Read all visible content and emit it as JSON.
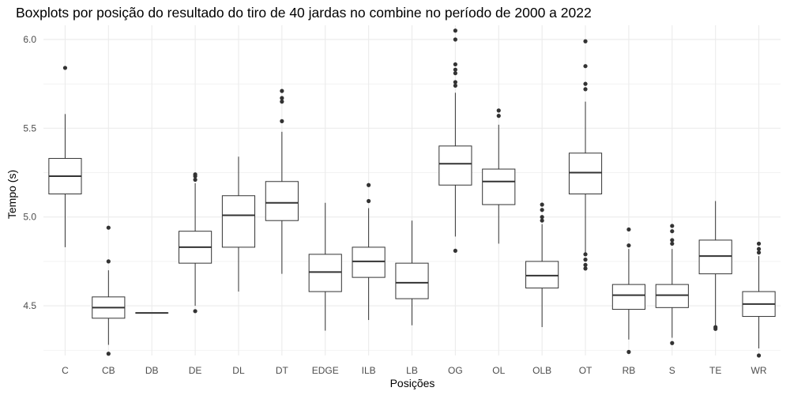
{
  "chart_data": {
    "type": "boxplot",
    "title": "Boxplots por posição do resultado do tiro de 40 jardas no combine no período de 2000 a 2022",
    "xlabel": "Posições",
    "ylabel": "Tempo (s)",
    "ylim": [
      4.22,
      6.08
    ],
    "yticks": [
      4.5,
      5.0,
      5.5,
      6.0
    ],
    "ytick_labels": [
      "4.5",
      "5.0",
      "5.5",
      "6.0"
    ],
    "grid": true,
    "categories": [
      "C",
      "CB",
      "DB",
      "DE",
      "DL",
      "DT",
      "EDGE",
      "ILB",
      "LB",
      "OG",
      "OL",
      "OLB",
      "OT",
      "RB",
      "S",
      "TE",
      "WR"
    ],
    "boxes": [
      {
        "category": "C",
        "whisker_low": 4.83,
        "q1": 5.13,
        "median": 5.23,
        "q3": 5.33,
        "whisker_high": 5.58,
        "outliers": [
          5.84
        ]
      },
      {
        "category": "CB",
        "whisker_low": 4.28,
        "q1": 4.43,
        "median": 4.49,
        "q3": 4.55,
        "whisker_high": 4.7,
        "outliers": [
          4.23,
          4.75,
          4.94
        ]
      },
      {
        "category": "DB",
        "whisker_low": 4.46,
        "q1": 4.46,
        "median": 4.46,
        "q3": 4.46,
        "whisker_high": 4.46,
        "outliers": []
      },
      {
        "category": "DE",
        "whisker_low": 4.5,
        "q1": 4.74,
        "median": 4.83,
        "q3": 4.92,
        "whisker_high": 5.19,
        "outliers": [
          4.47,
          5.21,
          5.23,
          5.24
        ]
      },
      {
        "category": "DL",
        "whisker_low": 4.58,
        "q1": 4.83,
        "median": 5.01,
        "q3": 5.12,
        "whisker_high": 5.34,
        "outliers": []
      },
      {
        "category": "DT",
        "whisker_low": 4.68,
        "q1": 4.98,
        "median": 5.08,
        "q3": 5.2,
        "whisker_high": 5.48,
        "outliers": [
          5.54,
          5.65,
          5.67,
          5.71
        ]
      },
      {
        "category": "EDGE",
        "whisker_low": 4.36,
        "q1": 4.58,
        "median": 4.69,
        "q3": 4.79,
        "whisker_high": 5.08,
        "outliers": []
      },
      {
        "category": "ILB",
        "whisker_low": 4.42,
        "q1": 4.66,
        "median": 4.75,
        "q3": 4.83,
        "whisker_high": 5.05,
        "outliers": [
          5.09,
          5.18
        ]
      },
      {
        "category": "LB",
        "whisker_low": 4.39,
        "q1": 4.54,
        "median": 4.63,
        "q3": 4.74,
        "whisker_high": 4.98,
        "outliers": []
      },
      {
        "category": "OG",
        "whisker_low": 4.89,
        "q1": 5.18,
        "median": 5.3,
        "q3": 5.4,
        "whisker_high": 5.7,
        "outliers": [
          4.81,
          5.74,
          5.76,
          5.81,
          5.83,
          5.86,
          6.0,
          6.05
        ]
      },
      {
        "category": "OL",
        "whisker_low": 4.85,
        "q1": 5.07,
        "median": 5.2,
        "q3": 5.27,
        "whisker_high": 5.52,
        "outliers": [
          5.57,
          5.6
        ]
      },
      {
        "category": "OLB",
        "whisker_low": 4.38,
        "q1": 4.6,
        "median": 4.67,
        "q3": 4.75,
        "whisker_high": 4.96,
        "outliers": [
          4.98,
          5.0,
          5.04,
          5.07
        ]
      },
      {
        "category": "OT",
        "whisker_low": 4.8,
        "q1": 5.13,
        "median": 5.25,
        "q3": 5.36,
        "whisker_high": 5.65,
        "outliers": [
          4.71,
          4.73,
          4.76,
          4.79,
          5.72,
          5.75,
          5.85,
          5.99
        ]
      },
      {
        "category": "RB",
        "whisker_low": 4.31,
        "q1": 4.48,
        "median": 4.56,
        "q3": 4.62,
        "whisker_high": 4.82,
        "outliers": [
          4.24,
          4.84,
          4.93
        ]
      },
      {
        "category": "S",
        "whisker_low": 4.32,
        "q1": 4.49,
        "median": 4.56,
        "q3": 4.62,
        "whisker_high": 4.82,
        "outliers": [
          4.29,
          4.85,
          4.87,
          4.92,
          4.95
        ]
      },
      {
        "category": "TE",
        "whisker_low": 4.39,
        "q1": 4.68,
        "median": 4.78,
        "q3": 4.87,
        "whisker_high": 5.09,
        "outliers": [
          4.37,
          4.38
        ]
      },
      {
        "category": "WR",
        "whisker_low": 4.26,
        "q1": 4.44,
        "median": 4.51,
        "q3": 4.58,
        "whisker_high": 4.78,
        "outliers": [
          4.22,
          4.8,
          4.82,
          4.85
        ]
      }
    ],
    "colors": {
      "box_fill": "#ffffff",
      "box_stroke": "#333333",
      "grid": "#ebebeb",
      "outlier": "#333333"
    }
  }
}
